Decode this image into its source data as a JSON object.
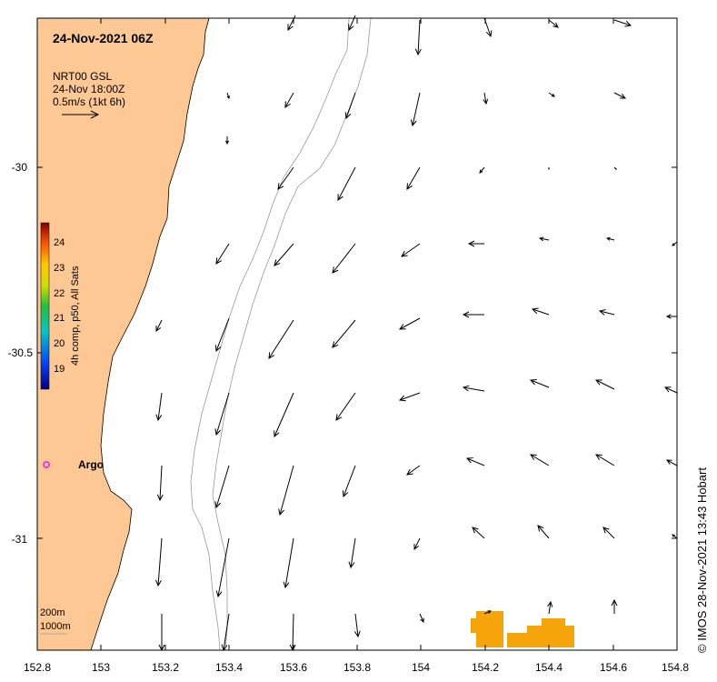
{
  "title": "24-Nov-2021 06Z",
  "legend": {
    "product": "NRT00 GSL",
    "time": "24-Nov 18:00Z",
    "scale": "0.5m/s (1kt 6h)"
  },
  "colorbar": {
    "label": "4h comp, p50, All Sats",
    "ticks": [
      "24",
      "23",
      "22",
      "21",
      "20",
      "19"
    ]
  },
  "argo": {
    "label": "Argo"
  },
  "contours": {
    "line1": "200m",
    "line2": "1000m"
  },
  "credit": "© IMOS 28-Nov-2021 13:43 Hobart",
  "axes": {
    "lon_ticks": [
      "152.8",
      "153",
      "153.2",
      "153.4",
      "153.6",
      "153.8",
      "154",
      "154.2",
      "154.4",
      "154.6",
      "154.8"
    ],
    "lat_ticks": [
      "-30",
      "-30.5",
      "-31"
    ]
  },
  "colors": {
    "land": "#fdc894",
    "sst": "#f5a50a",
    "argo": "#e040e0"
  }
}
